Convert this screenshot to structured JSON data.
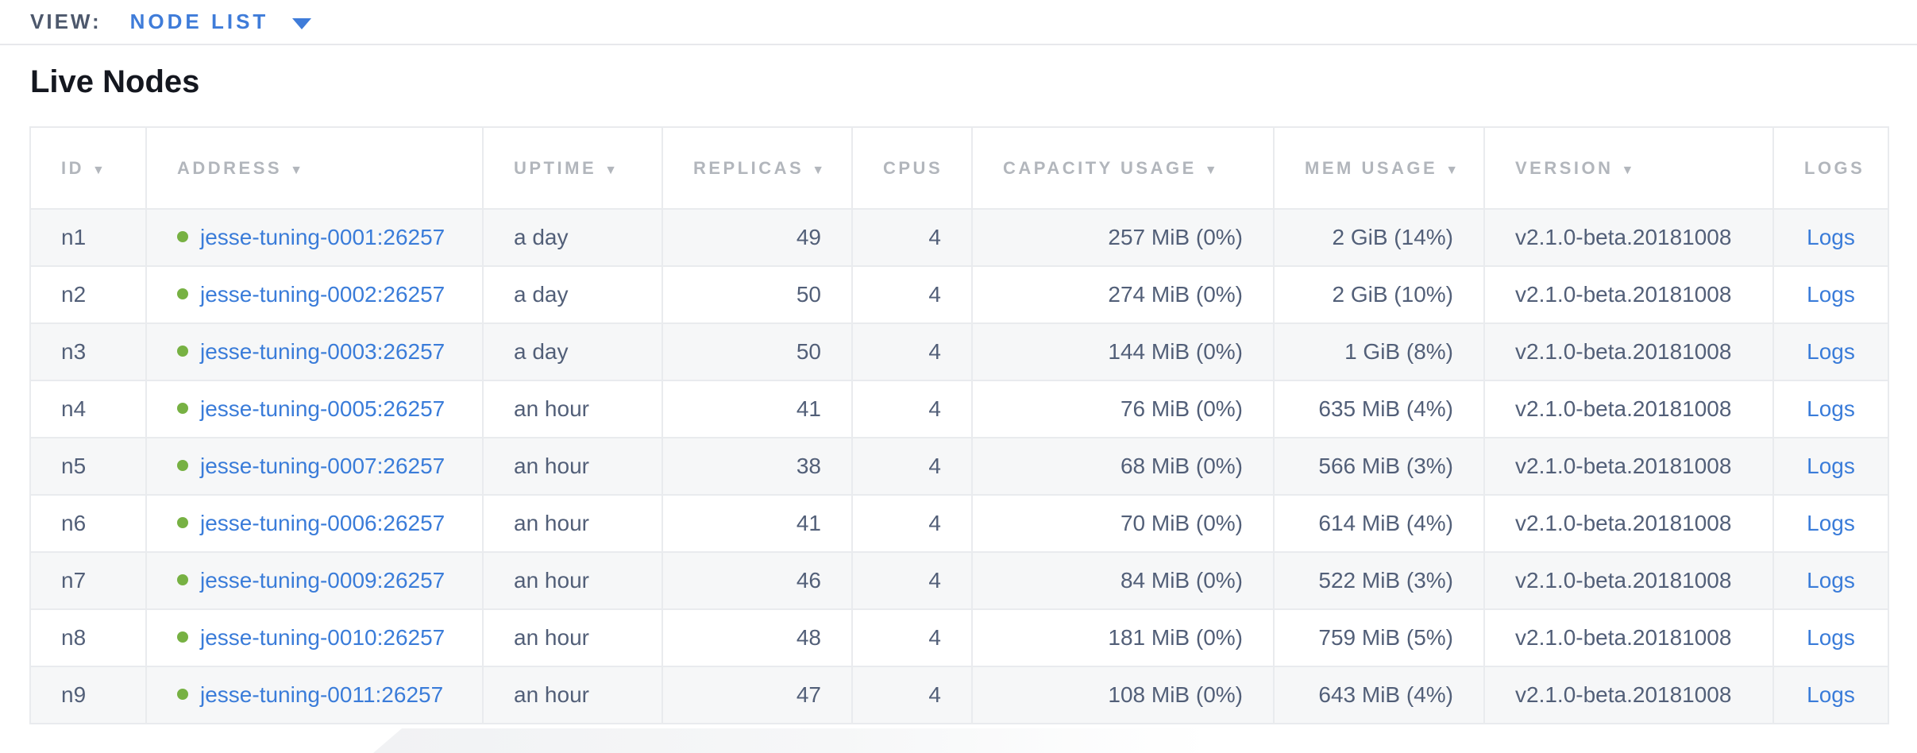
{
  "view_bar": {
    "label": "VIEW:",
    "selected_view": "NODE LIST"
  },
  "page_title": "Live Nodes",
  "table": {
    "columns": [
      {
        "key": "id",
        "label": "ID",
        "sortable": true,
        "align": "left"
      },
      {
        "key": "address",
        "label": "ADDRESS",
        "sortable": true,
        "align": "left"
      },
      {
        "key": "uptime",
        "label": "UPTIME",
        "sortable": true,
        "align": "left"
      },
      {
        "key": "replicas",
        "label": "REPLICAS",
        "sortable": true,
        "align": "right"
      },
      {
        "key": "cpus",
        "label": "CPUS",
        "sortable": false,
        "align": "right"
      },
      {
        "key": "capacity_usage",
        "label": "CAPACITY USAGE",
        "sortable": true,
        "align": "right"
      },
      {
        "key": "mem_usage",
        "label": "MEM USAGE",
        "sortable": true,
        "align": "right"
      },
      {
        "key": "version",
        "label": "VERSION",
        "sortable": true,
        "align": "left"
      },
      {
        "key": "logs",
        "label": "LOGS",
        "sortable": false,
        "align": "center"
      }
    ],
    "rows": [
      {
        "id": "n1",
        "status": "live",
        "address": "jesse-tuning-0001:26257",
        "uptime": "a day",
        "replicas": "49",
        "cpus": "4",
        "capacity_usage": "257 MiB (0%)",
        "mem_usage": "2 GiB (14%)",
        "version": "v2.1.0-beta.20181008",
        "logs": "Logs"
      },
      {
        "id": "n2",
        "status": "live",
        "address": "jesse-tuning-0002:26257",
        "uptime": "a day",
        "replicas": "50",
        "cpus": "4",
        "capacity_usage": "274 MiB (0%)",
        "mem_usage": "2 GiB (10%)",
        "version": "v2.1.0-beta.20181008",
        "logs": "Logs"
      },
      {
        "id": "n3",
        "status": "live",
        "address": "jesse-tuning-0003:26257",
        "uptime": "a day",
        "replicas": "50",
        "cpus": "4",
        "capacity_usage": "144 MiB (0%)",
        "mem_usage": "1 GiB (8%)",
        "version": "v2.1.0-beta.20181008",
        "logs": "Logs"
      },
      {
        "id": "n4",
        "status": "live",
        "address": "jesse-tuning-0005:26257",
        "uptime": "an hour",
        "replicas": "41",
        "cpus": "4",
        "capacity_usage": "76 MiB (0%)",
        "mem_usage": "635 MiB (4%)",
        "version": "v2.1.0-beta.20181008",
        "logs": "Logs"
      },
      {
        "id": "n5",
        "status": "live",
        "address": "jesse-tuning-0007:26257",
        "uptime": "an hour",
        "replicas": "38",
        "cpus": "4",
        "capacity_usage": "68 MiB (0%)",
        "mem_usage": "566 MiB (3%)",
        "version": "v2.1.0-beta.20181008",
        "logs": "Logs"
      },
      {
        "id": "n6",
        "status": "live",
        "address": "jesse-tuning-0006:26257",
        "uptime": "an hour",
        "replicas": "41",
        "cpus": "4",
        "capacity_usage": "70 MiB (0%)",
        "mem_usage": "614 MiB (4%)",
        "version": "v2.1.0-beta.20181008",
        "logs": "Logs"
      },
      {
        "id": "n7",
        "status": "live",
        "address": "jesse-tuning-0009:26257",
        "uptime": "an hour",
        "replicas": "46",
        "cpus": "4",
        "capacity_usage": "84 MiB (0%)",
        "mem_usage": "522 MiB (3%)",
        "version": "v2.1.0-beta.20181008",
        "logs": "Logs"
      },
      {
        "id": "n8",
        "status": "live",
        "address": "jesse-tuning-0010:26257",
        "uptime": "an hour",
        "replicas": "48",
        "cpus": "4",
        "capacity_usage": "181 MiB (0%)",
        "mem_usage": "759 MiB (5%)",
        "version": "v2.1.0-beta.20181008",
        "logs": "Logs"
      },
      {
        "id": "n9",
        "status": "live",
        "address": "jesse-tuning-0011:26257",
        "uptime": "an hour",
        "replicas": "47",
        "cpus": "4",
        "capacity_usage": "108 MiB (0%)",
        "mem_usage": "643 MiB (4%)",
        "version": "v2.1.0-beta.20181008",
        "logs": "Logs"
      }
    ]
  },
  "icons": {
    "sort_desc": "▼",
    "dropdown_caret": "▼",
    "status_dot": "circle"
  },
  "colors": {
    "link_blue": "#3a7cd9",
    "selected_view_blue": "#3f7cd9",
    "status_green": "#77b143",
    "header_gray": "#b2b6bc",
    "cell_text": "#525f78",
    "row_stripe": "#f6f7f8",
    "table_border": "#e9ebee"
  }
}
